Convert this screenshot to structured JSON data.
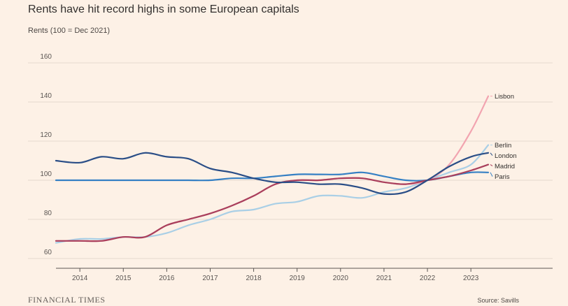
{
  "chart_data": {
    "type": "line",
    "title": "Rents have hit record highs in some European capitals",
    "subtitle": "Rents (100 = Dec 2021)",
    "ylim": [
      55,
      165
    ],
    "xlim": [
      2013.45,
      2023.4
    ],
    "yticks": [
      60,
      80,
      100,
      120,
      140,
      160
    ],
    "y_tick_labels": [
      "60",
      "80",
      "100",
      "120",
      "140",
      "160"
    ],
    "xticks": [
      2014,
      2015,
      2016,
      2017,
      2018,
      2019,
      2020,
      2021,
      2022,
      2023
    ],
    "x_tick_labels": [
      "2014",
      "2015",
      "2016",
      "2017",
      "2018",
      "2019",
      "2020",
      "2021",
      "2022",
      "2023"
    ],
    "grid": "horizontal",
    "legend": "end-of-line labels",
    "source": "Source: Savills",
    "publisher": "FINANCIAL TIMES",
    "series": [
      {
        "name": "Lisbon",
        "color": "#f2a4b0",
        "x": [
          2013.45,
          2014,
          2014.5,
          2015,
          2015.5,
          2016,
          2016.5,
          2017,
          2017.5,
          2018,
          2018.5,
          2019,
          2019.5,
          2020,
          2020.5,
          2021,
          2021.5,
          2022,
          2022.5,
          2023,
          2023.4
        ],
        "values": [
          69,
          69,
          69,
          71,
          71,
          77,
          80,
          83,
          87,
          92,
          98,
          100,
          100,
          101,
          101,
          99,
          98,
          100,
          108,
          125,
          143
        ]
      },
      {
        "name": "Berlin",
        "color": "#a9cfe6",
        "x": [
          2013.45,
          2014,
          2014.5,
          2015,
          2015.5,
          2016,
          2016.5,
          2017,
          2017.5,
          2018,
          2018.5,
          2019,
          2019.5,
          2020,
          2020.5,
          2021,
          2021.5,
          2022,
          2022.5,
          2023,
          2023.4
        ],
        "values": [
          68,
          70,
          70,
          71,
          71,
          73,
          77,
          80,
          84,
          85,
          88,
          89,
          92,
          92,
          91,
          94,
          96,
          100,
          104,
          108,
          118
        ]
      },
      {
        "name": "London",
        "color": "#2a4e87",
        "x": [
          2013.45,
          2014,
          2014.5,
          2015,
          2015.5,
          2016,
          2016.5,
          2017,
          2017.5,
          2018,
          2018.5,
          2019,
          2019.5,
          2020,
          2020.5,
          2021,
          2021.5,
          2022,
          2022.5,
          2023,
          2023.4
        ],
        "values": [
          110,
          109,
          112,
          111,
          114,
          112,
          111,
          106,
          104,
          101,
          99,
          99,
          98,
          98,
          96,
          93,
          94,
          100,
          107,
          112,
          114
        ]
      },
      {
        "name": "Madrid",
        "color": "#a93f5c",
        "x": [
          2013.45,
          2014,
          2014.5,
          2015,
          2015.5,
          2016,
          2016.5,
          2017,
          2017.5,
          2018,
          2018.5,
          2019,
          2019.5,
          2020,
          2020.5,
          2021,
          2021.5,
          2022,
          2022.5,
          2023,
          2023.4
        ],
        "values": [
          69,
          69,
          69,
          71,
          71,
          77,
          80,
          83,
          87,
          92,
          98,
          100,
          100,
          101,
          101,
          99,
          98,
          100,
          102,
          105,
          108
        ]
      },
      {
        "name": "Paris",
        "color": "#3580c4",
        "x": [
          2013.45,
          2014,
          2014.5,
          2015,
          2015.5,
          2016,
          2016.5,
          2017,
          2017.5,
          2018,
          2018.5,
          2019,
          2019.5,
          2020,
          2020.5,
          2021,
          2021.5,
          2022,
          2022.5,
          2023,
          2023.4
        ],
        "values": [
          100,
          100,
          100,
          100,
          100,
          100,
          100,
          100,
          101,
          101,
          102,
          103,
          103,
          103,
          104,
          102,
          100,
          100,
          102,
          104,
          104
        ]
      }
    ]
  }
}
